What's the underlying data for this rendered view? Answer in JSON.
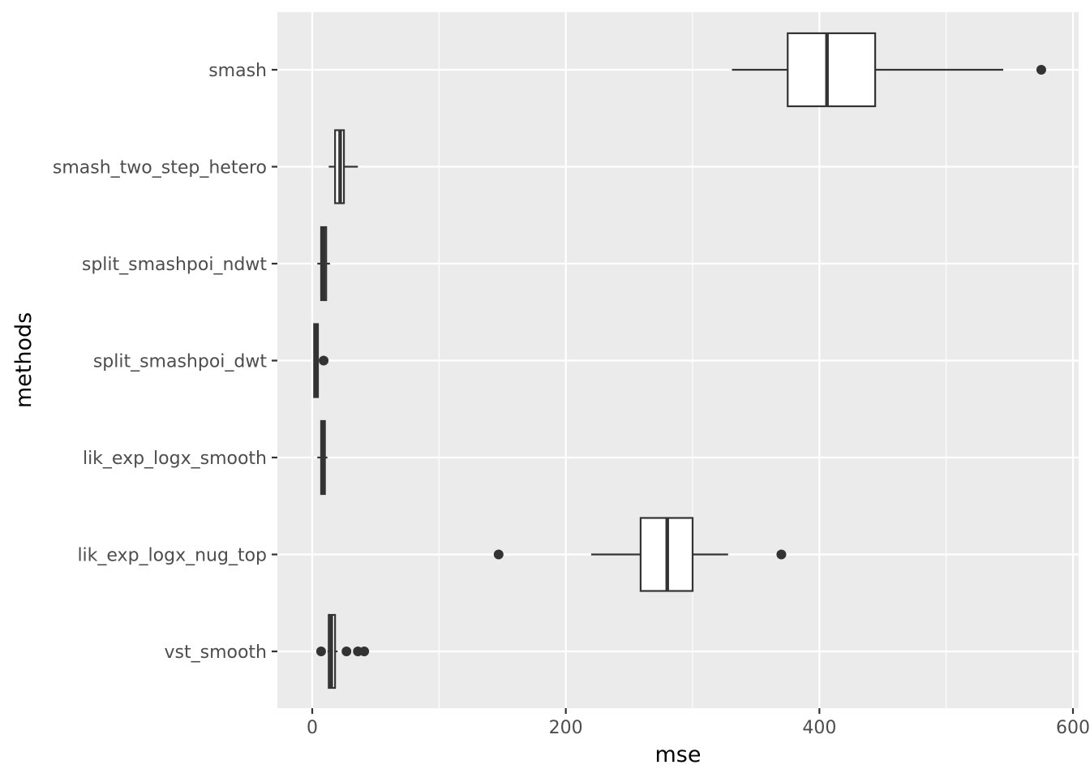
{
  "chart_data": {
    "type": "boxplot",
    "orientation": "horizontal",
    "title": "",
    "xlabel": "mse",
    "ylabel": "methods",
    "xlim": [
      -27,
      600
    ],
    "x_ticks": [
      0,
      200,
      400,
      600
    ],
    "x_tick_labels": [
      "0",
      "200",
      "400",
      "600"
    ],
    "grid": true,
    "colors": {
      "panel_background": "#ebebeb",
      "grid": "#ffffff",
      "box_fill": "#ffffff",
      "box_line": "#333333",
      "tick_text": "#4d4d4d",
      "axis_title": "#000000"
    },
    "categories": [
      "smash",
      "smash_two_step_hetero",
      "split_smashpoi_ndwt",
      "split_smashpoi_dwt",
      "lik_exp_logx_smooth",
      "lik_exp_logx_nug_top",
      "vst_smooth"
    ],
    "boxes": [
      {
        "method": "smash",
        "whisker_low": 331,
        "q1": 375,
        "median": 406,
        "q3": 444,
        "whisker_high": 545,
        "outliers": [
          575
        ]
      },
      {
        "method": "smash_two_step_hetero",
        "whisker_low": 13,
        "q1": 18,
        "median": 22,
        "q3": 25,
        "whisker_high": 36,
        "outliers": []
      },
      {
        "method": "split_smashpoi_ndwt",
        "whisker_low": 4,
        "q1": 7,
        "median": 9,
        "q3": 11,
        "whisker_high": 14,
        "outliers": []
      },
      {
        "method": "split_smashpoi_dwt",
        "whisker_low": 1,
        "q1": 1.5,
        "median": 3,
        "q3": 4.5,
        "whisker_high": 5,
        "outliers": [
          9
        ]
      },
      {
        "method": "lik_exp_logx_smooth",
        "whisker_low": 4,
        "q1": 7,
        "median": 8.5,
        "q3": 10,
        "whisker_high": 12,
        "outliers": []
      },
      {
        "method": "lik_exp_logx_nug_top",
        "whisker_low": 220,
        "q1": 259,
        "median": 280,
        "q3": 300,
        "whisker_high": 328,
        "outliers": [
          147,
          370
        ]
      },
      {
        "method": "vst_smooth",
        "whisker_low": 12,
        "q1": 13,
        "median": 15,
        "q3": 18,
        "whisker_high": 20,
        "outliers": [
          7,
          27,
          36,
          41
        ]
      }
    ]
  }
}
